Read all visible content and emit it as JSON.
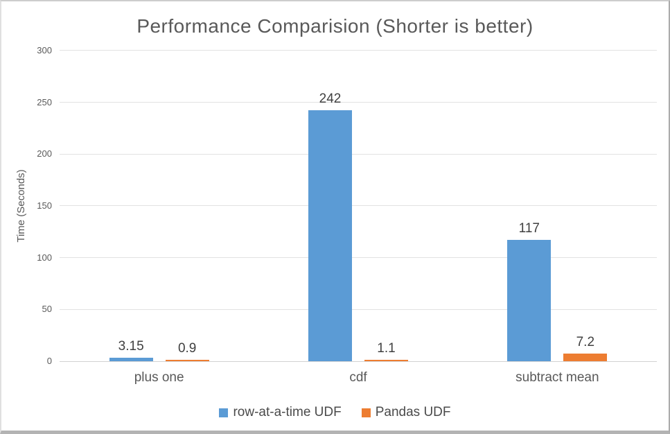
{
  "chart_data": {
    "type": "bar",
    "title": "Performance Comparision (Shorter is better)",
    "categories": [
      "plus one",
      "cdf",
      "subtract mean"
    ],
    "series": [
      {
        "name": "row-at-a-time UDF",
        "color": "#5B9BD5",
        "values": [
          3.15,
          242,
          117
        ]
      },
      {
        "name": "Pandas UDF",
        "color": "#ED7D31",
        "values": [
          0.9,
          1.1,
          7.2
        ]
      }
    ],
    "data_labels": [
      [
        "3.15",
        "242",
        "117"
      ],
      [
        "0.9",
        "1.1",
        "7.2"
      ]
    ],
    "xlabel": "",
    "ylabel": "Time (Seconds)",
    "ylim": [
      0,
      300
    ],
    "ytick_step": 50,
    "ytick_labels": [
      "0",
      "50",
      "100",
      "150",
      "200",
      "250",
      "300"
    ],
    "grid": true,
    "legend_position": "bottom"
  },
  "colors": {
    "series_blue": "#5B9BD5",
    "series_orange": "#ED7D31",
    "title_text": "#595959",
    "axis_text": "#595959",
    "value_label_text": "#3f3f3f",
    "gridline": "#e2e2e2",
    "frame_border_bottom": "#b3b3b3"
  }
}
